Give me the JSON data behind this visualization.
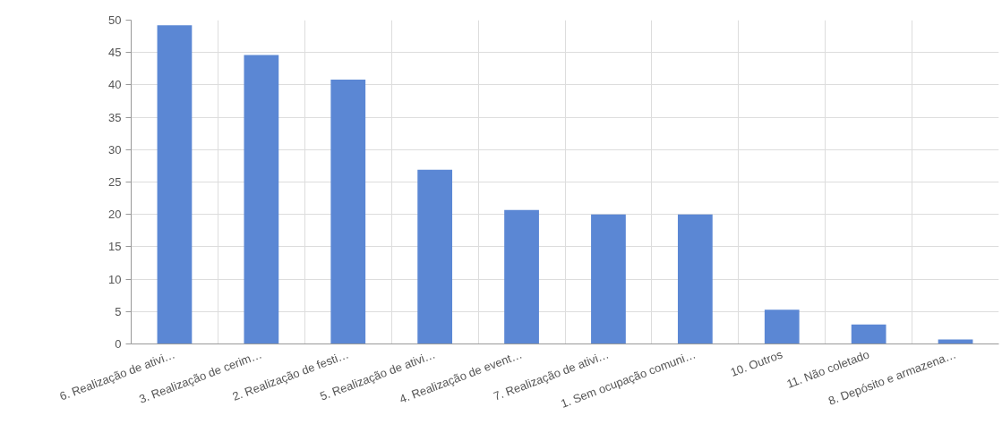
{
  "chart_data": {
    "type": "bar",
    "categories": [
      "6. Realização de ativi…",
      "3. Realização de cerim…",
      "2. Realização de festi…",
      "5. Realização de ativi…",
      "4. Realização de event…",
      "7. Realização de ativi…",
      "1. Sem ocupação comuni…",
      "10. Outros",
      "11. Não coletado",
      "8. Depósito e armazena…"
    ],
    "values": [
      49.2,
      44.6,
      40.8,
      26.9,
      20.7,
      20.0,
      20.0,
      5.3,
      3.0,
      0.7
    ],
    "color": "#5b87d4",
    "ylim": [
      0,
      50
    ],
    "yticks": [
      0,
      5,
      10,
      15,
      20,
      25,
      30,
      35,
      40,
      45,
      50
    ],
    "grid": true
  }
}
